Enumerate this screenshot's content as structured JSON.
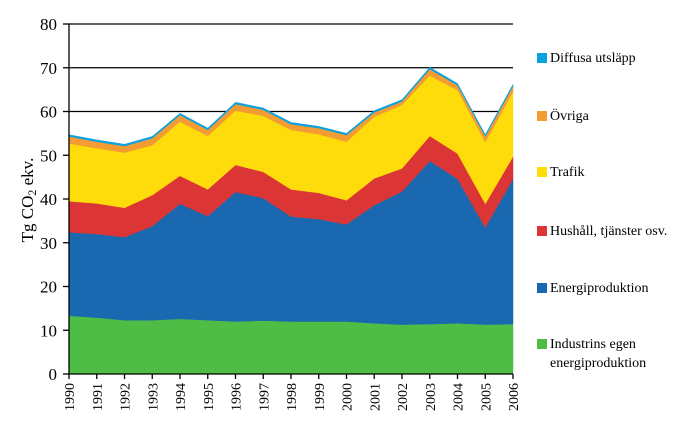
{
  "chart_data": {
    "type": "area",
    "stacked": true,
    "title": "",
    "xlabel": "",
    "ylabel": "Tg CO2 ekv.",
    "ylabel_parts": {
      "prefix": "Tg CO",
      "subscript": "2",
      "suffix": " ekv."
    },
    "ylim": [
      0,
      80
    ],
    "yticks": [
      0,
      10,
      20,
      30,
      40,
      50,
      60,
      70,
      80
    ],
    "grid": "horizontal",
    "legend_position": "right",
    "x": [
      "1990",
      "1991",
      "1992",
      "1993",
      "1994",
      "1995",
      "1996",
      "1997",
      "1998",
      "1999",
      "2000",
      "2001",
      "2002",
      "2003",
      "2004",
      "2005",
      "2006"
    ],
    "series": [
      {
        "name": "Industrins egen energiproduktion",
        "color": "#4fbd45",
        "values": [
          13.3,
          12.9,
          12.3,
          12.3,
          12.6,
          12.3,
          12.0,
          12.2,
          12.0,
          12.0,
          12.0,
          11.6,
          11.3,
          11.4,
          11.6,
          11.3,
          11.4
        ]
      },
      {
        "name": "Energiproduktion",
        "color": "#1a69b0",
        "values": [
          19.1,
          19.1,
          19.0,
          21.5,
          26.3,
          23.8,
          29.6,
          28.0,
          24.0,
          23.4,
          22.2,
          27.0,
          30.4,
          37.3,
          33.0,
          22.2,
          33.2
        ]
      },
      {
        "name": "Hushåll, tjänster osv.",
        "color": "#dc3535",
        "values": [
          7.1,
          7.0,
          6.7,
          7.1,
          6.4,
          6.1,
          6.2,
          6.0,
          6.2,
          6.0,
          5.5,
          6.1,
          5.3,
          5.7,
          5.8,
          5.4,
          5.1
        ]
      },
      {
        "name": "Trafik",
        "color": "#fedc0b",
        "values": [
          13.2,
          12.6,
          12.6,
          11.4,
          12.4,
          12.2,
          12.4,
          12.8,
          13.6,
          13.4,
          13.4,
          14.1,
          14.5,
          13.8,
          14.5,
          14.1,
          14.8
        ]
      },
      {
        "name": "Övriga",
        "color": "#f39c34",
        "values": [
          1.6,
          1.5,
          1.5,
          1.6,
          1.5,
          1.4,
          1.5,
          1.4,
          1.3,
          1.4,
          1.5,
          1.0,
          0.8,
          1.5,
          1.1,
          1.3,
          1.3
        ]
      },
      {
        "name": "Diffusa utsläpp",
        "color": "#0aa2e0",
        "values": [
          0.4,
          0.4,
          0.4,
          0.4,
          0.4,
          0.4,
          0.4,
          0.4,
          0.4,
          0.4,
          0.4,
          0.4,
          0.4,
          0.4,
          0.4,
          0.4,
          0.4
        ]
      }
    ],
    "legend": [
      {
        "label": "Diffusa utsläpp",
        "color": "#0aa2e0"
      },
      {
        "label": "Övriga",
        "color": "#f39c34"
      },
      {
        "label": "Trafik",
        "color": "#fedc0b"
      },
      {
        "label": "Hushåll, tjänster osv.",
        "color": "#dc3535"
      },
      {
        "label": "Energiproduktion",
        "color": "#1a69b0"
      },
      {
        "label": "Industrins egen energiproduktion",
        "color": "#4fbd45"
      }
    ]
  }
}
